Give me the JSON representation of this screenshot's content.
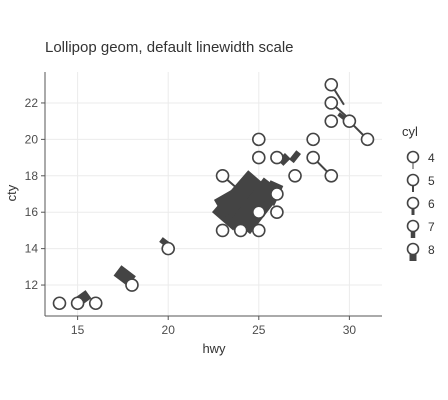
{
  "colors": {
    "mark": "#444444",
    "point_fill": "#ffffff",
    "grid": "#ebebeb"
  },
  "chart_data": {
    "type": "scatter",
    "title": "Lollipop geom, default linewidth scale",
    "xlabel": "hwy",
    "ylabel": "cty",
    "xlim": [
      13.2,
      31.8
    ],
    "ylim": [
      10.3,
      23.7
    ],
    "grid": true,
    "x_ticks": [
      15,
      20,
      25,
      30
    ],
    "y_ticks": [
      12,
      14,
      16,
      18,
      20,
      22
    ],
    "legend": {
      "title": "cyl",
      "position": "right",
      "entries": [
        {
          "label": "4",
          "linewidth": 1
        },
        {
          "label": "5",
          "linewidth": 2
        },
        {
          "label": "6",
          "linewidth": 3
        },
        {
          "label": "7",
          "linewidth": 4.5
        },
        {
          "label": "8",
          "linewidth": 7
        }
      ]
    },
    "series": [
      {
        "name": "points",
        "x": [
          14,
          15,
          16,
          18,
          20,
          23,
          23,
          24,
          25,
          25,
          25,
          26,
          26,
          26,
          27,
          28,
          28,
          29,
          29,
          29,
          29,
          30,
          31,
          25,
          25
        ],
        "y": [
          11,
          11,
          11,
          12,
          14,
          15,
          18,
          15,
          15,
          16,
          20,
          16,
          17,
          19,
          18,
          19,
          20,
          18,
          21,
          22,
          23,
          21,
          20,
          19,
          16
        ]
      }
    ],
    "segments": [
      {
        "x1": 14.9,
        "y1": 11.0,
        "x2": 15.6,
        "y2": 11.5,
        "linewidth": 10,
        "cyl": 8
      },
      {
        "x1": 17.2,
        "y1": 12.8,
        "x2": 18.0,
        "y2": 12.2,
        "linewidth": 13,
        "cyl": 8
      },
      {
        "x1": 19.6,
        "y1": 14.5,
        "x2": 20.0,
        "y2": 14.2,
        "linewidth": 6,
        "cyl": 7
      },
      {
        "x1": 23.0,
        "y1": 15.5,
        "x2": 25.0,
        "y2": 17.8,
        "linewidth": 28,
        "cyl": 8
      },
      {
        "x1": 24.0,
        "y1": 15.2,
        "x2": 25.8,
        "y2": 17.5,
        "linewidth": 24,
        "cyl": 8
      },
      {
        "x1": 22.8,
        "y1": 16.2,
        "x2": 24.2,
        "y2": 17.0,
        "linewidth": 20,
        "cyl": 8
      },
      {
        "x1": 25.5,
        "y1": 16.5,
        "x2": 26.0,
        "y2": 17.6,
        "linewidth": 14,
        "cyl": 6
      },
      {
        "x1": 26.2,
        "y1": 18.7,
        "x2": 26.6,
        "y2": 19.1,
        "linewidth": 8,
        "cyl": 6
      },
      {
        "x1": 26.8,
        "y1": 18.8,
        "x2": 27.2,
        "y2": 19.3,
        "linewidth": 6,
        "cyl": 6
      },
      {
        "x1": 23.0,
        "y1": 18.0,
        "x2": 24.4,
        "y2": 16.8,
        "linewidth": 2,
        "cyl": 4
      },
      {
        "x1": 28.0,
        "y1": 19.0,
        "x2": 29.0,
        "y2": 18.0,
        "linewidth": 2,
        "cyl": 4
      },
      {
        "x1": 29.0,
        "y1": 22.0,
        "x2": 29.8,
        "y2": 21.3,
        "linewidth": 2,
        "cyl": 4
      },
      {
        "x1": 29.0,
        "y1": 23.0,
        "x2": 29.7,
        "y2": 21.9,
        "linewidth": 2,
        "cyl": 4
      },
      {
        "x1": 30.0,
        "y1": 21.0,
        "x2": 31.0,
        "y2": 20.0,
        "linewidth": 2,
        "cyl": 4
      },
      {
        "x1": 29.4,
        "y1": 21.4,
        "x2": 29.8,
        "y2": 21.1,
        "linewidth": 4,
        "cyl": 5
      }
    ]
  }
}
